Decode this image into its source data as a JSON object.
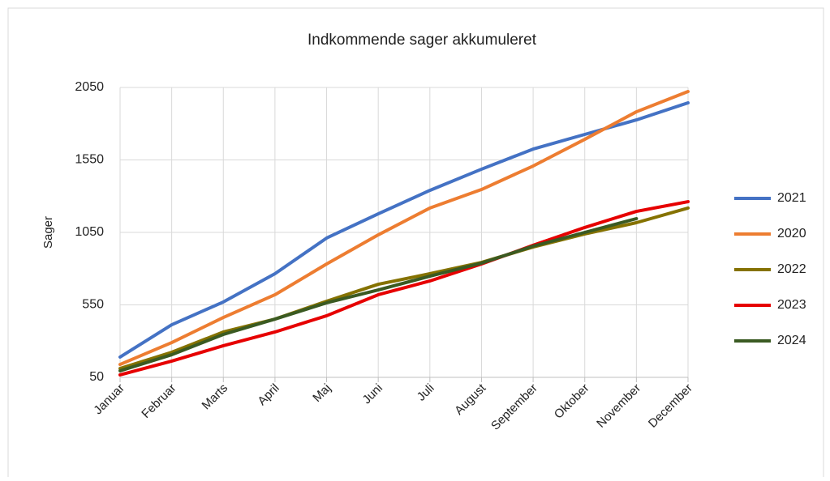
{
  "chart_data": {
    "type": "line",
    "title": "Indkommende  sager akkumuleret",
    "y_label": "Sager",
    "categories": [
      "Januar",
      "Februar",
      "Marts",
      "April",
      "Maj",
      "Juni",
      "Juli",
      "August",
      "September",
      "Oktober",
      "November",
      "December"
    ],
    "series": [
      {
        "name": "2021",
        "color": "#4472c4",
        "values": [
          190,
          413,
          570,
          765,
          1011,
          1178,
          1340,
          1486,
          1625,
          1726,
          1826,
          1944
        ]
      },
      {
        "name": "2020",
        "color": "#ed7d31",
        "values": [
          139,
          290,
          463,
          620,
          832,
          1033,
          1218,
          1346,
          1508,
          1692,
          1882,
          2022
        ]
      },
      {
        "name": "2022",
        "color": "#857200",
        "values": [
          111,
          223,
          363,
          452,
          575,
          692,
          765,
          843,
          949,
          1039,
          1117,
          1218
        ]
      },
      {
        "name": "2023",
        "color": "#e60000",
        "values": [
          67,
          162,
          268,
          363,
          475,
          620,
          715,
          832,
          961,
          1084,
          1195,
          1262
        ]
      },
      {
        "name": "2024",
        "color": "#3a5a22",
        "values": [
          95,
          206,
          346,
          452,
          564,
          653,
          748,
          838,
          955,
          1050,
          1145,
          null
        ]
      }
    ],
    "ylim": [
      50,
      2050
    ],
    "yticks": [
      50,
      550,
      1050,
      1550,
      2050
    ],
    "grid": true,
    "legend": "right"
  }
}
